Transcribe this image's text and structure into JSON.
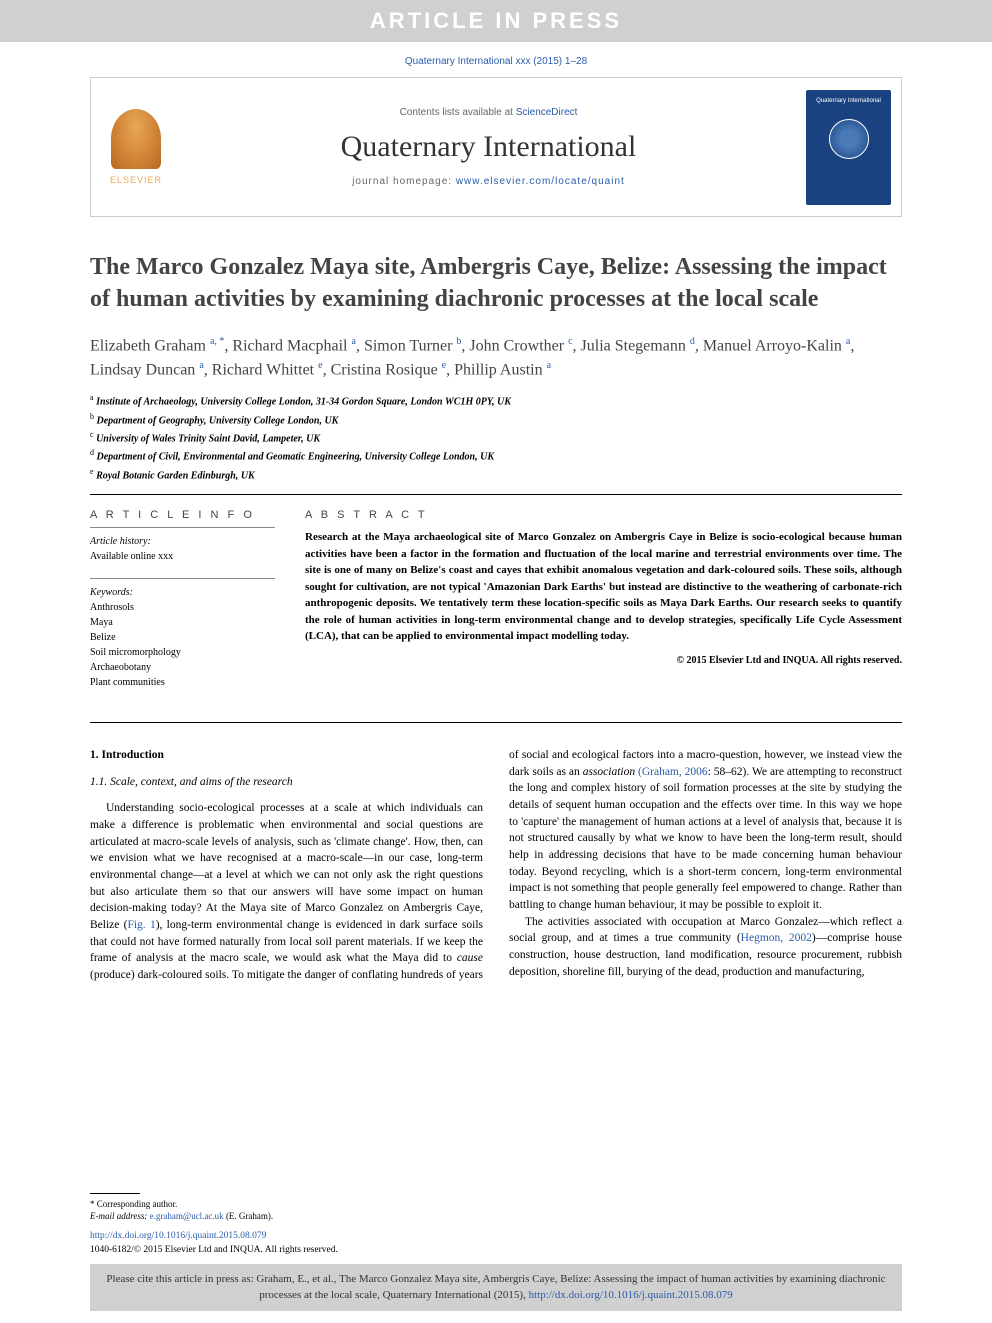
{
  "banner": {
    "text": "ARTICLE IN PRESS"
  },
  "citation_top": "Quaternary International xxx (2015) 1–28",
  "header": {
    "contents_prefix": "Contents lists available at ",
    "contents_link": "ScienceDirect",
    "journal": "Quaternary International",
    "homepage_prefix": "journal homepage: ",
    "homepage_url": "www.elsevier.com/locate/quaint",
    "publisher_name": "ELSEVIER",
    "cover_title": "Quaternary International"
  },
  "title": "The Marco Gonzalez Maya site, Ambergris Caye, Belize: Assessing the impact of human activities by examining diachronic processes at the local scale",
  "authors_html": "Elizabeth Graham <sup>a, *</sup>, Richard Macphail <sup>a</sup>, Simon Turner <sup>b</sup>, John Crowther <sup>c</sup>, Julia Stegemann <sup>d</sup>, Manuel Arroyo-Kalin <sup>a</sup>, Lindsay Duncan <sup>a</sup>, Richard Whittet <sup>e</sup>, Cristina Rosique <sup>e</sup>, Phillip Austin <sup>a</sup>",
  "affiliations": [
    {
      "sup": "a",
      "text": "Institute of Archaeology, University College London, 31-34 Gordon Square, London WC1H 0PY, UK"
    },
    {
      "sup": "b",
      "text": "Department of Geography, University College London, UK"
    },
    {
      "sup": "c",
      "text": "University of Wales Trinity Saint David, Lampeter, UK"
    },
    {
      "sup": "d",
      "text": "Department of Civil, Environmental and Geomatic Engineering, University College London, UK"
    },
    {
      "sup": "e",
      "text": "Royal Botanic Garden Edinburgh, UK"
    }
  ],
  "article_info": {
    "heading": "A R T I C L E   I N F O",
    "history_label": "Article history:",
    "history_text": "Available online xxx",
    "keywords_label": "Keywords:",
    "keywords": [
      "Anthrosols",
      "Maya",
      "Belize",
      "Soil micromorphology",
      "Archaeobotany",
      "Plant communities"
    ]
  },
  "abstract": {
    "heading": "A B S T R A C T",
    "text": "Research at the Maya archaeological site of Marco Gonzalez on Ambergris Caye in Belize is socio-ecological because human activities have been a factor in the formation and fluctuation of the local marine and terrestrial environments over time. The site is one of many on Belize's coast and cayes that exhibit anomalous vegetation and dark-coloured soils. These soils, although sought for cultivation, are not typical 'Amazonian Dark Earths' but instead are distinctive to the weathering of carbonate-rich anthropogenic deposits. We tentatively term these location-specific soils as Maya Dark Earths. Our research seeks to quantify the role of human activities in long-term environmental change and to develop strategies, specifically Life Cycle Assessment (LCA), that can be applied to environmental impact modelling today.",
    "copyright": "© 2015 Elsevier Ltd and INQUA. All rights reserved."
  },
  "body": {
    "section1": "1. Introduction",
    "subsection11": "1.1. Scale, context, and aims of the research",
    "p1_pre": "Understanding socio-ecological processes at a scale at which individuals can make a difference is problematic when environmental and social questions are articulated at macro-scale levels of analysis, such as 'climate change'. How, then, can we envision what we have recognised at a macro-scale—in our case, long-term environmental change—at a level at which we can not only ask the right questions but also articulate them so that our answers will have some impact on human decision-making today? At the Maya site of Marco Gonzalez on Ambergris Caye, Belize (",
    "p1_fig": "Fig. 1",
    "p1_post": "), long-term environmental change is evidenced in dark surface soils that could not have formed naturally from local soil parent materials. If we keep the frame of analysis at the macro scale, we would ask what the Maya did to ",
    "p1_cause": "cause",
    "p1_post2": " (produce) dark-coloured soils. To mitigate the danger of conflating hundreds of years of social and ecological factors into a macro-question, however, we instead view the dark soils as an ",
    "p1_assoc": "association",
    "p1_ref": " (Graham, 2006",
    "p1_post3": ": 58–62). We are attempting to reconstruct the long and complex history of soil formation processes at the site by studying the details of sequent human occupation and the effects over time. In this way we hope to 'capture' the management of human actions at a level of analysis that, because it is not structured causally by what we know to have been the long-term result, should help in addressing decisions that have to be made concerning human behaviour today. Beyond recycling, which is a short-term concern, long-term environmental impact is not something that people generally feel empowered to change. Rather than battling to change human behaviour, it may be possible to exploit it.",
    "p2_pre": "The activities associated with occupation at Marco Gonzalez—which reflect a social group, and at times a true community (",
    "p2_ref": "Hegmon, 2002",
    "p2_post": ")—comprise house construction, house destruction, land modification, resource procurement, rubbish deposition, shoreline fill, burying of the dead, production and manufacturing,"
  },
  "corresponding": {
    "label": "* Corresponding author.",
    "email_label": "E-mail address: ",
    "email": "e.graham@ucl.ac.uk",
    "name": " (E. Graham)."
  },
  "doi": {
    "url": "http://dx.doi.org/10.1016/j.quaint.2015.08.079",
    "issn_line": "1040-6182/© 2015 Elsevier Ltd and INQUA. All rights reserved."
  },
  "cite_box": {
    "text_pre": "Please cite this article in press as: Graham, E., et al., The Marco Gonzalez Maya site, Ambergris Caye, Belize: Assessing the impact of human activities by examining diachronic processes at the local scale, Quaternary International (2015), ",
    "url": "http://dx.doi.org/10.1016/j.quaint.2015.08.079"
  },
  "colors": {
    "banner_bg": "#d0d0d0",
    "banner_text": "#ffffff",
    "link": "#2a5caa",
    "cover_bg": "#1a4280",
    "text": "#000000",
    "title_text": "#444444"
  }
}
